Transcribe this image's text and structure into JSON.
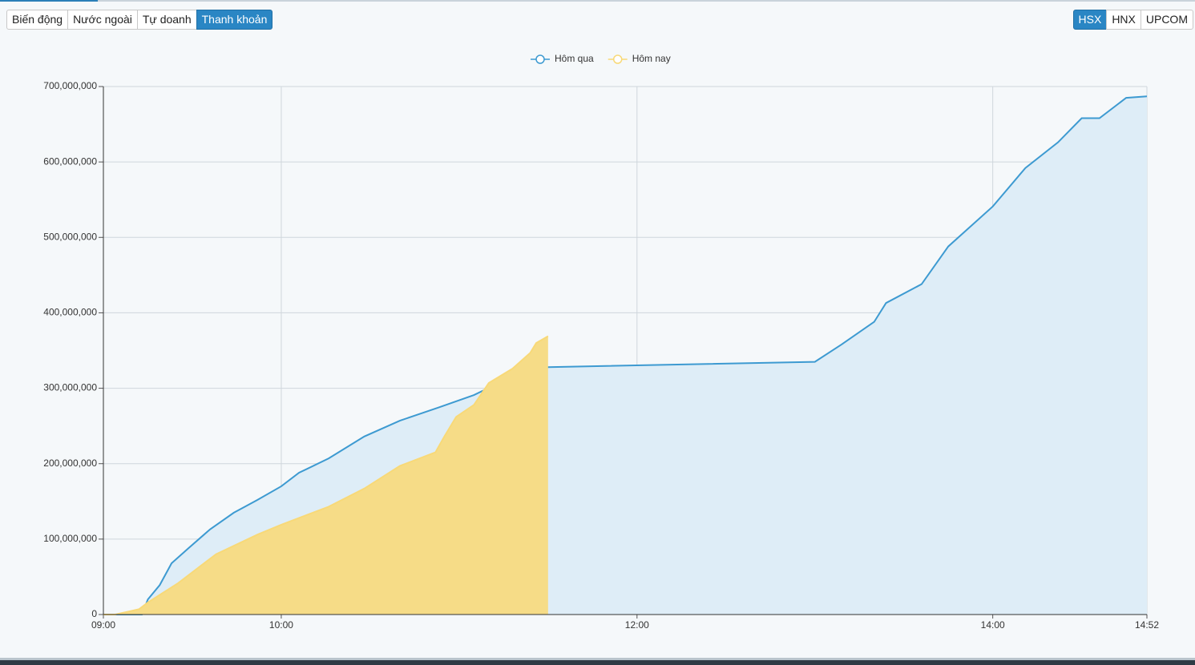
{
  "tabs": {
    "left": [
      "Biến động",
      "Nước ngoài",
      "Tự doanh",
      "Thanh khoản"
    ],
    "left_active": 3,
    "right": [
      "HSX",
      "HNX",
      "UPCOM"
    ],
    "right_active": 0
  },
  "chart_data": {
    "type": "area",
    "legend": "top",
    "grid": true,
    "xlim": [
      "09:00",
      "14:52"
    ],
    "xticks": [
      "09:00",
      "10:00",
      "12:00",
      "14:00",
      "14:52"
    ],
    "ylim": [
      0,
      700000000
    ],
    "yticks": [
      0,
      {
        "value": 100000000,
        "label": "100,000,000"
      },
      {
        "value": 200000000,
        "label": "200,000,000"
      },
      {
        "value": 300000000,
        "label": "300,000,000"
      },
      {
        "value": 400000000,
        "label": "400,000,000"
      },
      {
        "value": 500000000,
        "label": "500,000,000"
      },
      {
        "value": 600000000,
        "label": "600,000,000"
      },
      {
        "value": 700000000,
        "label": "700,000,000"
      }
    ],
    "series": [
      {
        "name": "Hôm qua",
        "color": "#3d9ad1",
        "fill": "#deedf7",
        "x": [
          "09:00",
          "09:13",
          "09:15",
          "09:19",
          "09:23",
          "09:29",
          "09:36",
          "09:44",
          "09:52",
          "10:00",
          "10:06",
          "10:16",
          "10:28",
          "10:40",
          "10:52",
          "11:05",
          "11:15",
          "11:30",
          "13:00",
          "13:09",
          "13:20",
          "13:24",
          "13:36",
          "13:45",
          "14:00",
          "14:11",
          "14:22",
          "14:30",
          "14:36",
          "14:45",
          "14:52"
        ],
        "values": [
          0,
          0,
          20000000,
          39000000,
          68000000,
          89000000,
          113000000,
          135000000,
          152000000,
          170000000,
          188000000,
          207000000,
          236000000,
          257000000,
          273000000,
          291000000,
          310000000,
          328000000,
          335000000,
          358000000,
          388000000,
          413000000,
          438000000,
          488000000,
          541000000,
          592000000,
          626000000,
          658000000,
          658000000,
          685000000,
          687000000
        ]
      },
      {
        "name": "Hôm nay",
        "color": "#f8d978",
        "fill": "#f6dc87",
        "x": [
          "09:00",
          "09:04",
          "09:12",
          "09:15",
          "09:25",
          "09:38",
          "09:52",
          "10:00",
          "10:16",
          "10:28",
          "10:40",
          "10:52",
          "10:55",
          "10:59",
          "11:05",
          "11:10",
          "11:18",
          "11:24",
          "11:26",
          "11:30"
        ],
        "values": [
          0,
          0,
          7000000,
          16000000,
          41000000,
          80000000,
          106000000,
          119000000,
          143000000,
          167000000,
          197000000,
          215000000,
          236000000,
          262000000,
          278000000,
          307000000,
          326000000,
          347000000,
          360000000,
          369000000
        ]
      }
    ]
  }
}
